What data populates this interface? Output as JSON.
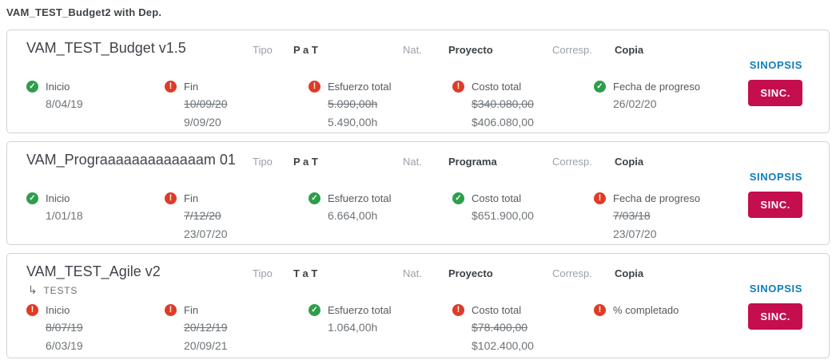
{
  "page": {
    "title": "VAM_TEST_Budget2 with Dep."
  },
  "actions": {
    "sinopsis": "SINOPSIS",
    "sinc": "SINC."
  },
  "colors": {
    "success": "#2e9e4c",
    "danger": "#df3b26",
    "link": "#0f7cba",
    "button": "#c40e4e"
  },
  "cards": [
    {
      "title": "VAM_TEST_Budget v1.5",
      "meta": {
        "tipo_label": "Tipo",
        "tipo": "P a T",
        "nat_label": "Nat.",
        "nat": "Proyecto",
        "corresp_label": "Corresp.",
        "corresp": "Copia"
      },
      "fields": [
        {
          "label": "Inicio",
          "status": "ok",
          "value": "8/04/19"
        },
        {
          "label": "Fin",
          "status": "error",
          "old": "10/09/20",
          "value": "9/09/20"
        },
        {
          "label": "Esfuerzo total",
          "status": "error",
          "old": "5.090,00h",
          "value": "5.490,00h"
        },
        {
          "label": "Costo total",
          "status": "error",
          "old": "$340.080,00",
          "value": "$406.080,00"
        },
        {
          "label": "Fecha de progreso",
          "status": "ok",
          "value": "26/02/20"
        }
      ]
    },
    {
      "title": "VAM_Prograaaaaaaaaaaaam 01",
      "meta": {
        "tipo_label": "Tipo",
        "tipo": "P a T",
        "nat_label": "Nat.",
        "nat": "Programa",
        "corresp_label": "Corresp.",
        "corresp": "Copia"
      },
      "fields": [
        {
          "label": "Inicio",
          "status": "ok",
          "value": "1/01/18"
        },
        {
          "label": "Fin",
          "status": "error",
          "old": "7/12/20",
          "value": "23/07/20"
        },
        {
          "label": "Esfuerzo total",
          "status": "ok",
          "value": "6.664,00h"
        },
        {
          "label": "Costo total",
          "status": "ok",
          "value": "$651.900,00"
        },
        {
          "label": "Fecha de progreso",
          "status": "error",
          "old": "7/03/18",
          "value": "23/07/20"
        }
      ]
    },
    {
      "title": "VAM_TEST_Agile v2",
      "sub_label": "TESTS",
      "sub_arrow": "↳",
      "meta": {
        "tipo_label": "Tipo",
        "tipo": "T a T",
        "nat_label": "Nat.",
        "nat": "Proyecto",
        "corresp_label": "Corresp.",
        "corresp": "Copia"
      },
      "fields": [
        {
          "label": "Inicio",
          "status": "error",
          "old": "8/07/19",
          "value": "6/03/19"
        },
        {
          "label": "Fin",
          "status": "error",
          "old": "20/12/19",
          "value": "20/09/21"
        },
        {
          "label": "Esfuerzo total",
          "status": "ok",
          "value": "1.064,00h"
        },
        {
          "label": "Costo total",
          "status": "error",
          "old": "$78.400,00",
          "value": "$102.400,00"
        },
        {
          "label": "% completado",
          "status": "error"
        }
      ]
    }
  ]
}
